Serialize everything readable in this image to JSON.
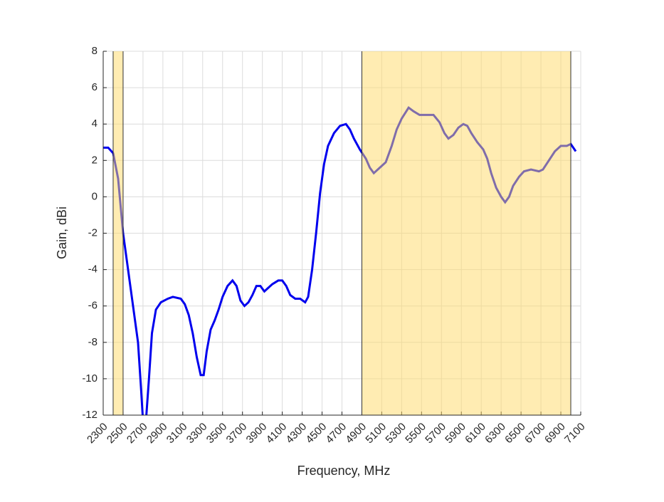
{
  "chart_data": {
    "type": "line",
    "x_label": "Frequency, MHz",
    "y_label": "Gain, dBi",
    "xlim": [
      2300,
      7100
    ],
    "ylim": [
      -12,
      8
    ],
    "xticks": [
      2300,
      2500,
      2700,
      2900,
      3100,
      3300,
      3500,
      3700,
      3900,
      4100,
      4300,
      4500,
      4700,
      4900,
      5100,
      5300,
      5500,
      5700,
      5900,
      6100,
      6300,
      6500,
      6700,
      6900,
      7100
    ],
    "yticks": [
      -12,
      -10,
      -8,
      -6,
      -4,
      -2,
      0,
      2,
      4,
      6,
      8
    ],
    "grid": true,
    "bands": [
      [
        2400,
        2500
      ],
      [
        4900,
        7000
      ]
    ],
    "band_color": "#ffd966",
    "series": [
      {
        "color": "#0000ee",
        "x": [
          2300,
          2350,
          2400,
          2450,
          2500,
          2550,
          2600,
          2650,
          2680,
          2700,
          2730,
          2760,
          2790,
          2830,
          2880,
          2950,
          3000,
          3080,
          3120,
          3160,
          3200,
          3240,
          3280,
          3310,
          3340,
          3380,
          3420,
          3460,
          3500,
          3550,
          3600,
          3640,
          3680,
          3720,
          3760,
          3800,
          3840,
          3880,
          3920,
          3960,
          4000,
          4060,
          4100,
          4140,
          4180,
          4230,
          4280,
          4330,
          4360,
          4400,
          4440,
          4480,
          4520,
          4560,
          4620,
          4680,
          4740,
          4780,
          4820,
          4880,
          4940,
          4980,
          5020,
          5080,
          5140,
          5200,
          5250,
          5300,
          5370,
          5420,
          5480,
          5550,
          5620,
          5680,
          5730,
          5770,
          5820,
          5870,
          5920,
          5960,
          6000,
          6060,
          6120,
          6160,
          6200,
          6250,
          6300,
          6340,
          6380,
          6420,
          6480,
          6530,
          6600,
          6680,
          6720,
          6780,
          6840,
          6900,
          6960,
          7000,
          7050
        ],
        "values": [
          2.7,
          2.7,
          2.4,
          1,
          -2,
          -4,
          -6,
          -8,
          -10.5,
          -12.3,
          -12.3,
          -10,
          -7.5,
          -6.2,
          -5.8,
          -5.6,
          -5.5,
          -5.6,
          -5.9,
          -6.5,
          -7.5,
          -8.8,
          -9.8,
          -9.8,
          -8.5,
          -7.3,
          -6.8,
          -6.2,
          -5.5,
          -4.9,
          -4.6,
          -4.9,
          -5.7,
          -6,
          -5.8,
          -5.4,
          -4.9,
          -4.9,
          -5.2,
          -5,
          -4.8,
          -4.6,
          -4.6,
          -4.9,
          -5.4,
          -5.6,
          -5.6,
          -5.8,
          -5.5,
          -4,
          -2,
          0.2,
          1.8,
          2.8,
          3.5,
          3.9,
          4,
          3.7,
          3.2,
          2.6,
          2.1,
          1.6,
          1.3,
          1.6,
          1.9,
          2.8,
          3.7,
          4.3,
          4.9,
          4.7,
          4.5,
          4.5,
          4.5,
          4.1,
          3.5,
          3.2,
          3.4,
          3.8,
          4,
          3.9,
          3.5,
          3,
          2.6,
          2.1,
          1.3,
          0.5,
          0,
          -0.3,
          0,
          0.6,
          1.1,
          1.4,
          1.5,
          1.4,
          1.5,
          2,
          2.5,
          2.8,
          2.8,
          2.9,
          2.5
        ]
      }
    ]
  }
}
